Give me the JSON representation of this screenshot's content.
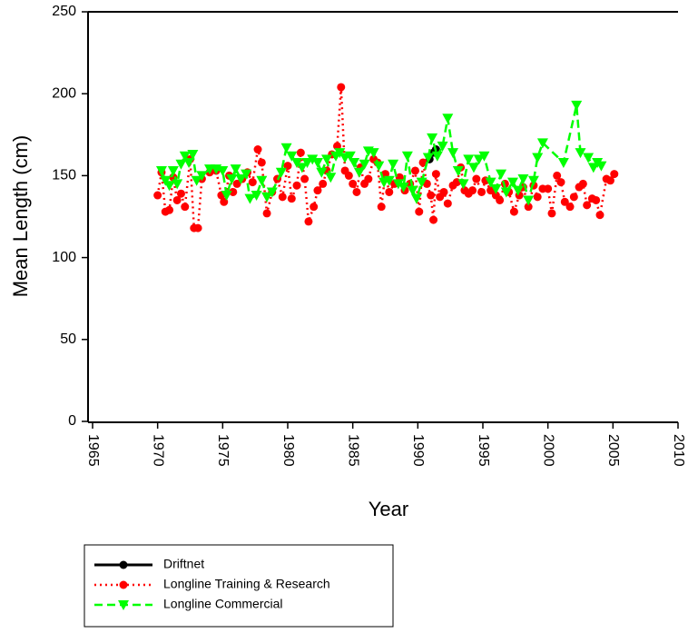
{
  "chart_data": {
    "type": "line",
    "x_label": "Year",
    "y_label": "Mean Length (cm)",
    "xlim": [
      1965,
      2010
    ],
    "xticks": [
      1965,
      1970,
      1975,
      1980,
      1985,
      1990,
      1995,
      2000,
      2005,
      2010
    ],
    "ylim": [
      0,
      250
    ],
    "yticks": [
      0,
      50,
      100,
      150,
      200,
      250
    ],
    "series": [
      {
        "name": "Driftnet",
        "color": "#000000",
        "linestyle": "solid",
        "marker": "circle",
        "x": [
          1990.9,
          1991.2,
          1991.4
        ],
        "values": [
          160,
          164,
          166
        ]
      },
      {
        "name": "Longline Training & Research",
        "color": "#ff0000",
        "linestyle": "dotted",
        "marker": "circle",
        "x": [
          1970.0,
          1970.3,
          1970.6,
          1970.9,
          1971.2,
          1971.5,
          1971.8,
          1972.1,
          1972.5,
          1972.8,
          1973.1,
          1973.4,
          1974.0,
          1974.5,
          1974.9,
          1975.1,
          1975.5,
          1975.8,
          1976.1,
          1976.5,
          1976.9,
          1977.3,
          1977.7,
          1978.0,
          1978.4,
          1978.8,
          1979.2,
          1979.6,
          1980.0,
          1980.3,
          1980.7,
          1981.0,
          1981.3,
          1981.6,
          1982.0,
          1982.3,
          1982.7,
          1983.0,
          1983.4,
          1983.8,
          1984.1,
          1984.4,
          1984.7,
          1985.0,
          1985.3,
          1985.6,
          1985.9,
          1986.2,
          1986.6,
          1986.9,
          1987.2,
          1987.5,
          1987.8,
          1988.2,
          1988.6,
          1989.0,
          1989.4,
          1989.8,
          1990.1,
          1990.4,
          1990.7,
          1991.0,
          1991.2,
          1991.4,
          1991.7,
          1992.0,
          1992.3,
          1992.7,
          1993.0,
          1993.3,
          1993.6,
          1993.9,
          1994.2,
          1994.5,
          1994.9,
          1995.2,
          1995.6,
          1996.0,
          1996.3,
          1996.7,
          1997.0,
          1997.4,
          1997.8,
          1998.1,
          1998.5,
          1998.9,
          1999.2,
          1999.6,
          2000.0,
          2000.3,
          2000.7,
          2001.0,
          2001.3,
          2001.7,
          2002.0,
          2002.4,
          2002.7,
          2003.0,
          2003.4,
          2003.7,
          2004.0,
          2004.5,
          2004.8,
          2005.1
        ],
        "values": [
          138,
          152,
          128,
          129,
          149,
          135,
          139,
          131,
          160,
          118,
          118,
          148,
          152,
          153,
          138,
          134,
          150,
          140,
          145,
          148,
          152,
          146,
          166,
          158,
          127,
          140,
          148,
          137,
          156,
          136,
          144,
          164,
          148,
          122,
          131,
          141,
          145,
          153,
          163,
          168,
          204,
          153,
          150,
          145,
          140,
          155,
          145,
          148,
          160,
          158,
          131,
          151,
          140,
          145,
          149,
          141,
          145,
          153,
          128,
          158,
          145,
          138,
          123,
          151,
          137,
          140,
          133,
          144,
          146,
          155,
          141,
          139,
          141,
          148,
          140,
          147,
          141,
          138,
          135,
          145,
          140,
          128,
          138,
          143,
          131,
          144,
          137,
          142,
          142,
          127,
          150,
          146,
          134,
          131,
          137,
          143,
          145,
          132,
          136,
          135,
          126,
          148,
          147,
          151
        ]
      },
      {
        "name": "Longline Commercial",
        "color": "#00ff00",
        "linestyle": "dashed",
        "marker": "triangle-down",
        "x": [
          1970.3,
          1970.6,
          1970.9,
          1971.2,
          1971.5,
          1971.8,
          1972.1,
          1972.4,
          1972.7,
          1973.0,
          1973.4,
          1974.0,
          1974.5,
          1975.0,
          1975.3,
          1975.7,
          1976.0,
          1976.4,
          1976.8,
          1977.1,
          1977.6,
          1978.0,
          1978.4,
          1978.8,
          1979.5,
          1979.9,
          1980.3,
          1980.7,
          1981.1,
          1981.5,
          1981.9,
          1982.3,
          1982.6,
          1983.0,
          1983.3,
          1983.7,
          1984.0,
          1984.4,
          1984.8,
          1985.1,
          1985.5,
          1985.9,
          1986.2,
          1986.6,
          1987.0,
          1987.4,
          1987.8,
          1988.1,
          1988.5,
          1988.9,
          1989.2,
          1989.6,
          1989.9,
          1990.3,
          1990.8,
          1991.1,
          1991.5,
          1991.9,
          1992.3,
          1992.7,
          1993.1,
          1993.5,
          1993.9,
          1994.3,
          1994.7,
          1995.1,
          1995.6,
          1996.0,
          1996.4,
          1996.8,
          1997.3,
          1997.7,
          1998.1,
          1998.5,
          1998.9,
          1999.2,
          1999.6,
          2001.2,
          2002.2,
          2002.5,
          2003.1,
          2003.5,
          2003.8,
          2004.1
        ],
        "values": [
          153,
          147,
          144,
          153,
          145,
          157,
          162,
          158,
          163,
          147,
          150,
          154,
          154,
          153,
          138,
          148,
          154,
          148,
          151,
          136,
          138,
          147,
          137,
          140,
          152,
          167,
          162,
          158,
          155,
          158,
          160,
          158,
          152,
          160,
          149,
          162,
          164,
          161,
          162,
          158,
          152,
          157,
          165,
          164,
          156,
          146,
          147,
          157,
          145,
          143,
          162,
          141,
          136,
          146,
          161,
          173,
          162,
          168,
          185,
          164,
          153,
          145,
          160,
          155,
          160,
          162,
          146,
          142,
          151,
          140,
          146,
          141,
          148,
          135,
          147,
          161,
          170,
          158,
          193,
          164,
          161,
          155,
          158,
          156
        ]
      }
    ]
  }
}
